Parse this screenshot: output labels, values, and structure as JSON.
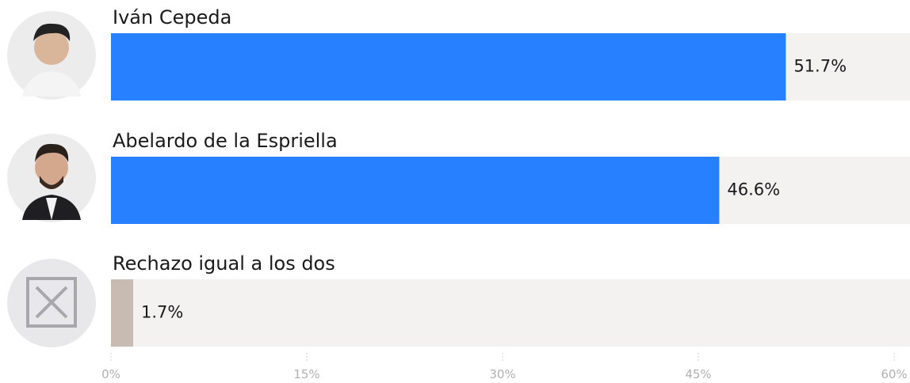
{
  "chart_data": {
    "type": "hbar",
    "categories": [
      "Iván Cepeda",
      "Abelardo de la Espriella",
      "Rechazo igual a los dos"
    ],
    "values": [
      51.7,
      46.6,
      1.7
    ],
    "value_labels": [
      "51.7%",
      "46.6%",
      "1.7%"
    ],
    "colors": [
      "#2680ff",
      "#2680ff",
      "#c8bbb2"
    ],
    "xlim": [
      0,
      60
    ],
    "xticks": [
      {
        "value": 0,
        "label": "0%"
      },
      {
        "value": 15,
        "label": "15%"
      },
      {
        "value": 30,
        "label": "30%"
      },
      {
        "value": 45,
        "label": "45%"
      },
      {
        "value": 60,
        "label": "60%"
      }
    ]
  }
}
